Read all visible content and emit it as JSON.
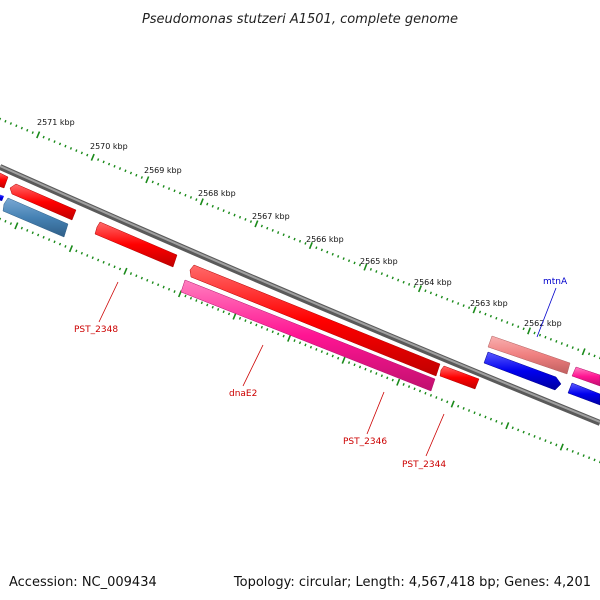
{
  "title": "Pseudomonas stutzeri A1501, complete genome",
  "footer": {
    "accession": "Accession: NC_009434",
    "summary": "Topology: circular; Length: 4,567,418 bp; Genes: 4,201"
  },
  "scale_labels": [
    "2571 kbp",
    "2570 kbp",
    "2569 kbp",
    "2568 kbp",
    "2567 kbp",
    "2566 kbp",
    "2565 kbp",
    "2564 kbp",
    "2563 kbp",
    "2562 kbp"
  ],
  "gene_labels": [
    {
      "name": "PST_2348",
      "color": "#cc0000"
    },
    {
      "name": "dnaE2",
      "color": "#cc0000"
    },
    {
      "name": "PST_2346",
      "color": "#cc0000"
    },
    {
      "name": "PST_2344",
      "color": "#cc0000"
    },
    {
      "name": "mtnA",
      "color": "#0000cc"
    }
  ],
  "colors": {
    "backbone": "#808080",
    "tick": "#1a8a1a",
    "forward_cds": "#ff0000",
    "rna": "#ff1493",
    "reverse_cds": "#0000ee",
    "light_red": "#f08080",
    "steel_blue": "#4682b4"
  }
}
